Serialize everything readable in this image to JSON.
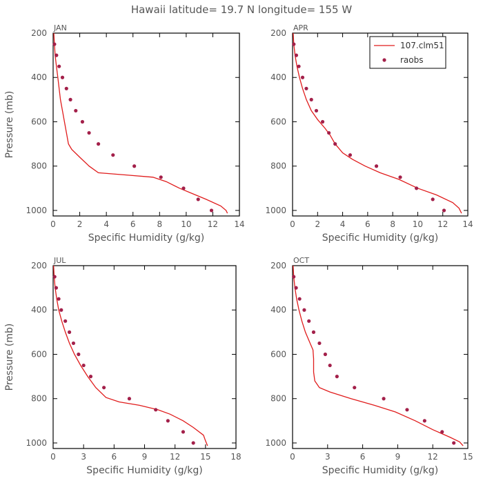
{
  "figure": {
    "title": "Hawaii  latitude= 19.7 N longitude= 155 W"
  },
  "colors": {
    "model_line": "#e01b1b",
    "raobs_dots": "#a3204a",
    "axis": "#000000",
    "text": "#555555"
  },
  "legend": {
    "entries": [
      "107.clm51",
      "raobs"
    ],
    "panel": "APR",
    "placement": "top-right"
  },
  "chart_data": [
    {
      "type": "line",
      "panel_label": "JAN",
      "xlabel": "Specific Humidity (g/kg)",
      "ylabel": "Pressure (mb)",
      "xlim": [
        0,
        14
      ],
      "ylim": [
        1025,
        200
      ],
      "x_ticks": [
        0,
        2,
        4,
        6,
        8,
        10,
        12,
        14
      ],
      "y_ticks": [
        200,
        400,
        600,
        800,
        1000
      ],
      "grid": false,
      "series": [
        {
          "name": "107.clm51",
          "style": "line",
          "points": [
            [
              0.05,
              200
            ],
            [
              0.1,
              250
            ],
            [
              0.15,
              300
            ],
            [
              0.25,
              350
            ],
            [
              0.35,
              400
            ],
            [
              0.45,
              450
            ],
            [
              0.55,
              500
            ],
            [
              0.7,
              550
            ],
            [
              0.85,
              600
            ],
            [
              1.0,
              650
            ],
            [
              1.15,
              700
            ],
            [
              1.4,
              725
            ],
            [
              2.0,
              760
            ],
            [
              2.7,
              800
            ],
            [
              3.4,
              830
            ],
            [
              5.5,
              840
            ],
            [
              7.5,
              850
            ],
            [
              8.5,
              870
            ],
            [
              9.5,
              900
            ],
            [
              10.5,
              925
            ],
            [
              11.5,
              950
            ],
            [
              12.6,
              980
            ],
            [
              13.0,
              1000
            ],
            [
              13.1,
              1013
            ]
          ]
        },
        {
          "name": "raobs",
          "style": "dots",
          "points": [
            [
              0.1,
              250
            ],
            [
              0.25,
              300
            ],
            [
              0.45,
              350
            ],
            [
              0.7,
              400
            ],
            [
              1.0,
              450
            ],
            [
              1.3,
              500
            ],
            [
              1.7,
              550
            ],
            [
              2.2,
              600
            ],
            [
              2.7,
              650
            ],
            [
              3.4,
              700
            ],
            [
              4.5,
              750
            ],
            [
              6.1,
              800
            ],
            [
              8.1,
              850
            ],
            [
              9.8,
              900
            ],
            [
              10.9,
              950
            ],
            [
              11.9,
              1000
            ]
          ]
        }
      ]
    },
    {
      "type": "line",
      "panel_label": "APR",
      "xlabel": "Specific Humidity (g/kg)",
      "ylabel": "",
      "xlim": [
        0,
        14
      ],
      "ylim": [
        1025,
        200
      ],
      "x_ticks": [
        0,
        2,
        4,
        6,
        8,
        10,
        12,
        14
      ],
      "y_ticks": [
        200,
        400,
        600,
        800,
        1000
      ],
      "grid": false,
      "series": [
        {
          "name": "107.clm51",
          "style": "line",
          "points": [
            [
              0.05,
              200
            ],
            [
              0.1,
              250
            ],
            [
              0.2,
              300
            ],
            [
              0.35,
              350
            ],
            [
              0.55,
              400
            ],
            [
              0.8,
              450
            ],
            [
              1.1,
              500
            ],
            [
              1.5,
              550
            ],
            [
              2.0,
              590
            ],
            [
              2.6,
              630
            ],
            [
              3.0,
              660
            ],
            [
              3.4,
              700
            ],
            [
              4.0,
              740
            ],
            [
              4.8,
              770
            ],
            [
              5.8,
              800
            ],
            [
              7.0,
              830
            ],
            [
              8.5,
              860
            ],
            [
              10.0,
              900
            ],
            [
              11.5,
              930
            ],
            [
              12.8,
              965
            ],
            [
              13.3,
              990
            ],
            [
              13.5,
              1013
            ]
          ]
        },
        {
          "name": "raobs",
          "style": "dots",
          "points": [
            [
              0.1,
              250
            ],
            [
              0.3,
              300
            ],
            [
              0.5,
              350
            ],
            [
              0.8,
              400
            ],
            [
              1.1,
              450
            ],
            [
              1.5,
              500
            ],
            [
              1.9,
              550
            ],
            [
              2.4,
              600
            ],
            [
              2.9,
              650
            ],
            [
              3.4,
              700
            ],
            [
              4.6,
              750
            ],
            [
              6.7,
              800
            ],
            [
              8.6,
              850
            ],
            [
              9.9,
              900
            ],
            [
              11.2,
              950
            ],
            [
              12.1,
              1000
            ]
          ]
        }
      ]
    },
    {
      "type": "line",
      "panel_label": "JUL",
      "xlabel": "Specific Humidity (g/kg)",
      "ylabel": "Pressure (mb)",
      "xlim": [
        0,
        18
      ],
      "ylim": [
        1025,
        200
      ],
      "x_ticks": [
        0,
        3,
        6,
        9,
        12,
        15,
        18
      ],
      "y_ticks": [
        200,
        400,
        600,
        800,
        1000
      ],
      "grid": false,
      "series": [
        {
          "name": "107.clm51",
          "style": "line",
          "points": [
            [
              0.05,
              200
            ],
            [
              0.1,
              250
            ],
            [
              0.2,
              300
            ],
            [
              0.35,
              350
            ],
            [
              0.55,
              400
            ],
            [
              0.85,
              450
            ],
            [
              1.2,
              500
            ],
            [
              1.6,
              550
            ],
            [
              2.1,
              600
            ],
            [
              2.7,
              650
            ],
            [
              3.4,
              700
            ],
            [
              4.2,
              750
            ],
            [
              5.2,
              795
            ],
            [
              6.5,
              815
            ],
            [
              8.5,
              830
            ],
            [
              10.3,
              850
            ],
            [
              11.5,
              870
            ],
            [
              12.8,
              900
            ],
            [
              13.8,
              930
            ],
            [
              14.8,
              965
            ],
            [
              15.0,
              990
            ],
            [
              15.2,
              1013
            ]
          ]
        },
        {
          "name": "raobs",
          "style": "dots",
          "points": [
            [
              0.15,
              250
            ],
            [
              0.3,
              300
            ],
            [
              0.55,
              350
            ],
            [
              0.8,
              400
            ],
            [
              1.2,
              450
            ],
            [
              1.6,
              500
            ],
            [
              2.0,
              550
            ],
            [
              2.5,
              600
            ],
            [
              3.0,
              650
            ],
            [
              3.7,
              700
            ],
            [
              5.0,
              750
            ],
            [
              7.5,
              800
            ],
            [
              10.1,
              850
            ],
            [
              11.3,
              900
            ],
            [
              12.8,
              950
            ],
            [
              13.8,
              1000
            ]
          ]
        }
      ]
    },
    {
      "type": "line",
      "panel_label": "OCT",
      "xlabel": "Specific Humidity (g/kg)",
      "ylabel": "",
      "xlim": [
        0,
        15
      ],
      "ylim": [
        1025,
        200
      ],
      "x_ticks": [
        0,
        3,
        6,
        9,
        12,
        15
      ],
      "y_ticks": [
        200,
        400,
        600,
        800,
        1000
      ],
      "grid": false,
      "series": [
        {
          "name": "107.clm51",
          "style": "line",
          "points": [
            [
              0.05,
              200
            ],
            [
              0.1,
              250
            ],
            [
              0.2,
              300
            ],
            [
              0.35,
              350
            ],
            [
              0.55,
              400
            ],
            [
              0.8,
              450
            ],
            [
              1.1,
              500
            ],
            [
              1.5,
              550
            ],
            [
              1.75,
              580
            ],
            [
              1.8,
              620
            ],
            [
              1.8,
              680
            ],
            [
              1.9,
              720
            ],
            [
              2.3,
              750
            ],
            [
              3.2,
              770
            ],
            [
              5.0,
              800
            ],
            [
              7.0,
              830
            ],
            [
              8.8,
              860
            ],
            [
              10.5,
              900
            ],
            [
              12.0,
              940
            ],
            [
              13.5,
              975
            ],
            [
              14.3,
              995
            ],
            [
              14.6,
              1013
            ]
          ]
        },
        {
          "name": "raobs",
          "style": "dots",
          "points": [
            [
              0.1,
              250
            ],
            [
              0.3,
              300
            ],
            [
              0.6,
              350
            ],
            [
              1.0,
              400
            ],
            [
              1.4,
              450
            ],
            [
              1.8,
              500
            ],
            [
              2.3,
              550
            ],
            [
              2.8,
              600
            ],
            [
              3.2,
              650
            ],
            [
              3.8,
              700
            ],
            [
              5.3,
              750
            ],
            [
              7.8,
              800
            ],
            [
              9.8,
              850
            ],
            [
              11.3,
              900
            ],
            [
              12.8,
              950
            ],
            [
              13.8,
              1000
            ]
          ]
        }
      ]
    }
  ]
}
